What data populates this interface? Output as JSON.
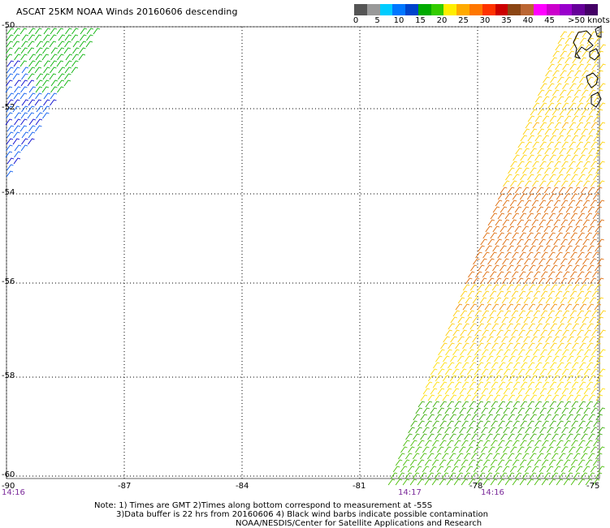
{
  "title": "ASCAT 25KM NOAA Winds 20160606 descending",
  "scale": {
    "colors": [
      "#555555",
      "#999999",
      "#00ccff",
      "#0077ff",
      "#0044cc",
      "#00aa00",
      "#33cc00",
      "#ffee00",
      "#ffaa00",
      "#ff7700",
      "#ff3300",
      "#cc0000",
      "#8b4513",
      "#bb6633",
      "#ff00ff",
      "#cc00cc",
      "#9900cc",
      "#660099",
      "#440066"
    ],
    "labels": [
      "0",
      "5",
      "10",
      "15",
      "20",
      "25",
      "30",
      "35",
      "40",
      "45",
      ">50 knots"
    ]
  },
  "axes": {
    "lat_labels": [
      "-50",
      "-52",
      "-54",
      "-56",
      "-58",
      "-60"
    ],
    "lon_labels": [
      "-90",
      "-87",
      "-84",
      "-81",
      "-78",
      "-75"
    ]
  },
  "times": [
    "14:16",
    "14:17",
    "14:16"
  ],
  "notes": {
    "line1": "Note: 1) Times are GMT 2)Times along bottom correspond to measurement at -55S",
    "line2": "3)Data buffer is 22 hrs from 20160606 4) Black wind barbs indicate possible contamination",
    "line3": "NOAA/NESDIS/Center for Satellite Applications and Research"
  }
}
